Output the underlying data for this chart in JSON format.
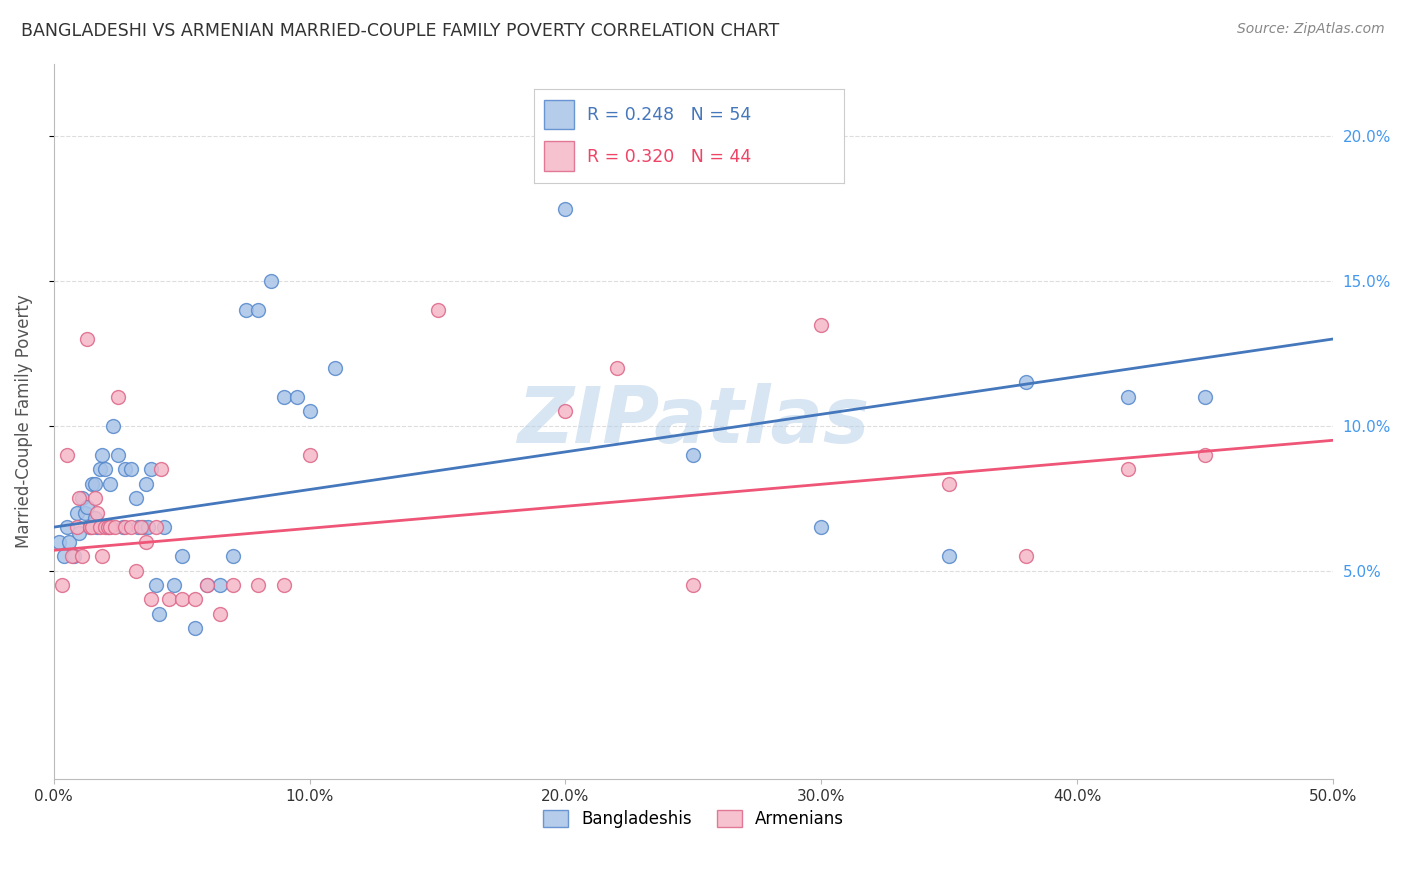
{
  "title": "BANGLADESHI VS ARMENIAN MARRIED-COUPLE FAMILY POVERTY CORRELATION CHART",
  "source": "Source: ZipAtlas.com",
  "ylabel_label": "Married-Couple Family Poverty",
  "xlim": [
    0.0,
    0.5
  ],
  "ylim": [
    -0.022,
    0.225
  ],
  "bangladeshi_x": [
    0.002,
    0.004,
    0.005,
    0.006,
    0.008,
    0.009,
    0.01,
    0.011,
    0.012,
    0.013,
    0.014,
    0.015,
    0.016,
    0.016,
    0.017,
    0.018,
    0.019,
    0.02,
    0.021,
    0.022,
    0.023,
    0.025,
    0.027,
    0.028,
    0.03,
    0.032,
    0.033,
    0.035,
    0.036,
    0.037,
    0.038,
    0.04,
    0.041,
    0.043,
    0.047,
    0.05,
    0.055,
    0.06,
    0.065,
    0.07,
    0.075,
    0.08,
    0.085,
    0.09,
    0.095,
    0.1,
    0.11,
    0.2,
    0.25,
    0.3,
    0.35,
    0.38,
    0.42,
    0.45
  ],
  "bangladeshi_y": [
    0.06,
    0.055,
    0.065,
    0.06,
    0.055,
    0.07,
    0.063,
    0.075,
    0.07,
    0.072,
    0.065,
    0.08,
    0.068,
    0.08,
    0.065,
    0.085,
    0.09,
    0.085,
    0.065,
    0.08,
    0.1,
    0.09,
    0.065,
    0.085,
    0.085,
    0.075,
    0.065,
    0.065,
    0.08,
    0.065,
    0.085,
    0.045,
    0.035,
    0.065,
    0.045,
    0.055,
    0.03,
    0.045,
    0.045,
    0.055,
    0.14,
    0.14,
    0.15,
    0.11,
    0.11,
    0.105,
    0.12,
    0.175,
    0.09,
    0.065,
    0.055,
    0.115,
    0.11,
    0.11
  ],
  "armenian_x": [
    0.003,
    0.005,
    0.007,
    0.009,
    0.01,
    0.011,
    0.013,
    0.014,
    0.015,
    0.016,
    0.017,
    0.018,
    0.019,
    0.02,
    0.021,
    0.022,
    0.024,
    0.025,
    0.028,
    0.03,
    0.032,
    0.034,
    0.036,
    0.038,
    0.04,
    0.042,
    0.045,
    0.05,
    0.055,
    0.06,
    0.065,
    0.07,
    0.08,
    0.09,
    0.1,
    0.15,
    0.2,
    0.22,
    0.25,
    0.3,
    0.35,
    0.38,
    0.42,
    0.45
  ],
  "armenian_y": [
    0.045,
    0.09,
    0.055,
    0.065,
    0.075,
    0.055,
    0.13,
    0.065,
    0.065,
    0.075,
    0.07,
    0.065,
    0.055,
    0.065,
    0.065,
    0.065,
    0.065,
    0.11,
    0.065,
    0.065,
    0.05,
    0.065,
    0.06,
    0.04,
    0.065,
    0.085,
    0.04,
    0.04,
    0.04,
    0.045,
    0.035,
    0.045,
    0.045,
    0.045,
    0.09,
    0.14,
    0.105,
    0.12,
    0.045,
    0.135,
    0.08,
    0.055,
    0.085,
    0.09
  ],
  "blue_line_x": [
    0.0,
    0.5
  ],
  "blue_line_y": [
    0.065,
    0.13
  ],
  "pink_line_x": [
    0.0,
    0.5
  ],
  "pink_line_y": [
    0.057,
    0.095
  ],
  "blue_scatter_color": "#aac4e8",
  "blue_scatter_edge": "#5588cc",
  "pink_scatter_color": "#f5b8c8",
  "pink_scatter_edge": "#dd6688",
  "blue_line_color": "#4477bb",
  "pink_line_color": "#ee5577",
  "watermark": "ZIPatlas",
  "watermark_color": "#b8d0e8",
  "bg_color": "#ffffff",
  "grid_color": "#dddddd",
  "title_color": "#333333",
  "ylabel_color": "#555555",
  "right_tick_color": "#4499ee",
  "bottom_tick_color": "#333333",
  "x_tick_vals": [
    0.0,
    0.1,
    0.2,
    0.3,
    0.4,
    0.5
  ],
  "x_tick_labels": [
    "0.0%",
    "10.0%",
    "20.0%",
    "30.0%",
    "40.0%",
    "50.0%"
  ],
  "y_tick_vals": [
    0.05,
    0.1,
    0.15,
    0.2
  ],
  "y_tick_labels": [
    "5.0%",
    "10.0%",
    "15.0%",
    "20.0%"
  ],
  "legend_r1": "R = 0.248   N = 54",
  "legend_r2": "R = 0.320   N = 44",
  "legend_r1_color": "#4477bb",
  "legend_r2_color": "#ee4466",
  "bottom_legend_labels": [
    "Bangladeshis",
    "Armenians"
  ],
  "scatter_size": 100
}
